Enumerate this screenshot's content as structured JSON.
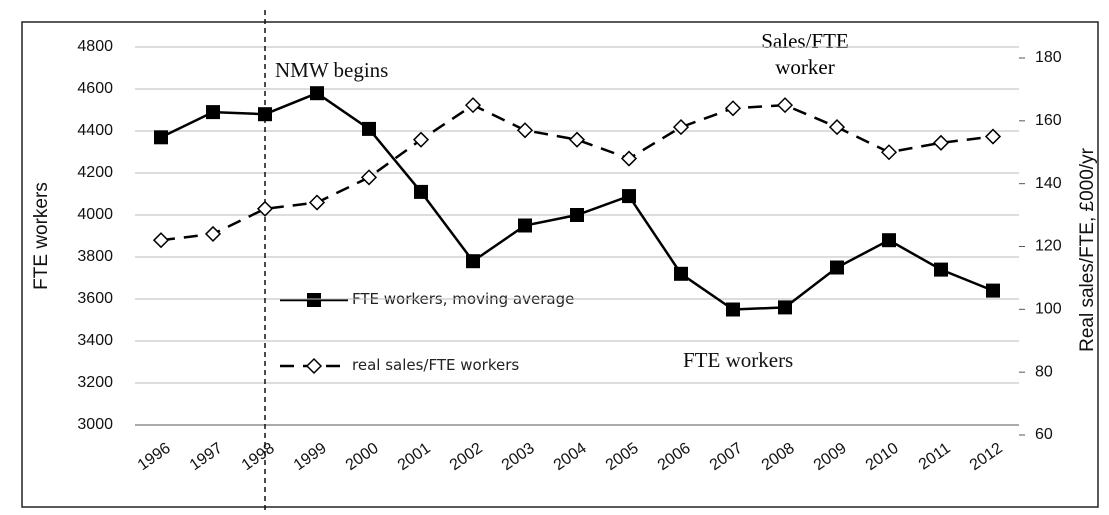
{
  "chart_data": {
    "type": "line",
    "y_label": "FTE workers",
    "y2_label": "Real sales/FTE, £000/yr",
    "annotations": [
      "NMW begins",
      "Sales/FTE worker",
      "FTE workers"
    ],
    "categories": [
      "1996",
      "1997",
      "1998",
      "1999",
      "2000",
      "2001",
      "2002",
      "2003",
      "2004",
      "2005",
      "2006",
      "2007",
      "2008",
      "2009",
      "2010",
      "2011",
      "2012"
    ],
    "series": [
      {
        "name": "FTE workers, moving average",
        "color": "#000000",
        "line_style": "solid",
        "marker": "square",
        "values": [
          4370,
          4490,
          4480,
          4580,
          4410,
          4110,
          3780,
          3950,
          4000,
          4090,
          3720,
          3550,
          3560,
          3750,
          3880,
          3740,
          3640
        ]
      },
      {
        "name": "real sales/FTE workers",
        "color": "#000000",
        "line_style": "dashed",
        "marker": "diamond",
        "axis": "y2",
        "values": [
          122,
          124,
          132,
          134,
          142,
          154,
          165,
          157,
          154,
          148,
          158,
          164,
          165,
          158,
          150,
          153,
          155
        ]
      }
    ],
    "ylim": [
      3000,
      4800
    ],
    "yticks": [
      3000,
      3200,
      3400,
      3600,
      3800,
      4000,
      4200,
      4400,
      4600,
      4800
    ],
    "y2lim": [
      60,
      180
    ],
    "y2ticks": [
      60,
      80,
      100,
      120,
      140,
      160,
      180
    ],
    "grid": true
  }
}
